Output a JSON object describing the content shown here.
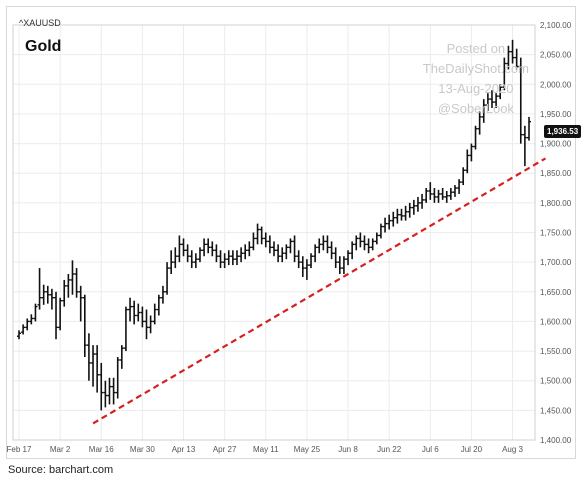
{
  "chart_data": {
    "type": "ohlc",
    "ticker": "^XAUUSD",
    "title": "Gold",
    "watermark": [
      "Posted on",
      "TheDailyShot.com",
      "13-Aug-2020",
      "@SoberLook"
    ],
    "source": "Source: barchart.com",
    "last_price_label": "1,936.53",
    "ylim": [
      1400,
      2100
    ],
    "yticks": [
      "1,400.00",
      "1,450.00",
      "1,500.00",
      "1,550.00",
      "1,600.00",
      "1,650.00",
      "1,700.00",
      "1,750.00",
      "1,800.00",
      "1,850.00",
      "1,900.00",
      "1,950.00",
      "2,000.00",
      "2,050.00",
      "2,100.00"
    ],
    "ytick_values": [
      1400,
      1450,
      1500,
      1550,
      1600,
      1650,
      1700,
      1750,
      1800,
      1850,
      1900,
      1950,
      2000,
      2050,
      2100
    ],
    "xticks": [
      "Feb 17",
      "Mar 2",
      "Mar 16",
      "Mar 30",
      "Apr 13",
      "Apr 27",
      "May 11",
      "May 25",
      "Jun 8",
      "Jun 22",
      "Jul 6",
      "Jul 20",
      "Aug 3"
    ],
    "xtick_index": [
      0,
      10,
      20,
      30,
      40,
      50,
      60,
      70,
      80,
      90,
      100,
      110,
      120
    ],
    "bars": [
      [
        1575,
        1585,
        1570,
        1580
      ],
      [
        1582,
        1595,
        1578,
        1590
      ],
      [
        1590,
        1605,
        1585,
        1600
      ],
      [
        1600,
        1612,
        1595,
        1605
      ],
      [
        1605,
        1630,
        1600,
        1625
      ],
      [
        1628,
        1690,
        1620,
        1640
      ],
      [
        1640,
        1662,
        1628,
        1650
      ],
      [
        1650,
        1660,
        1630,
        1645
      ],
      [
        1645,
        1655,
        1620,
        1640
      ],
      [
        1640,
        1650,
        1570,
        1590
      ],
      [
        1590,
        1640,
        1585,
        1635
      ],
      [
        1635,
        1670,
        1625,
        1660
      ],
      [
        1660,
        1680,
        1640,
        1670
      ],
      [
        1670,
        1703,
        1645,
        1680
      ],
      [
        1680,
        1690,
        1640,
        1650
      ],
      [
        1650,
        1660,
        1600,
        1640
      ],
      [
        1640,
        1645,
        1540,
        1560
      ],
      [
        1560,
        1580,
        1500,
        1530
      ],
      [
        1530,
        1560,
        1490,
        1545
      ],
      [
        1545,
        1560,
        1480,
        1510
      ],
      [
        1510,
        1530,
        1450,
        1480
      ],
      [
        1480,
        1500,
        1455,
        1475
      ],
      [
        1475,
        1505,
        1460,
        1490
      ],
      [
        1490,
        1505,
        1460,
        1480
      ],
      [
        1480,
        1540,
        1470,
        1535
      ],
      [
        1535,
        1560,
        1520,
        1555
      ],
      [
        1555,
        1625,
        1550,
        1620
      ],
      [
        1620,
        1640,
        1600,
        1625
      ],
      [
        1625,
        1635,
        1595,
        1610
      ],
      [
        1610,
        1630,
        1600,
        1615
      ],
      [
        1615,
        1625,
        1590,
        1600
      ],
      [
        1600,
        1620,
        1570,
        1590
      ],
      [
        1590,
        1610,
        1580,
        1600
      ],
      [
        1600,
        1630,
        1595,
        1620
      ],
      [
        1620,
        1645,
        1610,
        1640
      ],
      [
        1640,
        1660,
        1630,
        1650
      ],
      [
        1650,
        1700,
        1645,
        1690
      ],
      [
        1690,
        1720,
        1680,
        1700
      ],
      [
        1700,
        1725,
        1690,
        1710
      ],
      [
        1710,
        1745,
        1700,
        1730
      ],
      [
        1730,
        1740,
        1710,
        1720
      ],
      [
        1720,
        1730,
        1700,
        1710
      ],
      [
        1710,
        1720,
        1690,
        1700
      ],
      [
        1700,
        1715,
        1690,
        1705
      ],
      [
        1705,
        1725,
        1700,
        1720
      ],
      [
        1720,
        1740,
        1710,
        1730
      ],
      [
        1730,
        1740,
        1715,
        1725
      ],
      [
        1725,
        1735,
        1710,
        1720
      ],
      [
        1720,
        1730,
        1700,
        1710
      ],
      [
        1710,
        1720,
        1690,
        1700
      ],
      [
        1700,
        1715,
        1690,
        1705
      ],
      [
        1705,
        1720,
        1695,
        1710
      ],
      [
        1710,
        1720,
        1695,
        1705
      ],
      [
        1705,
        1720,
        1695,
        1710
      ],
      [
        1710,
        1725,
        1700,
        1715
      ],
      [
        1715,
        1730,
        1705,
        1720
      ],
      [
        1720,
        1735,
        1710,
        1725
      ],
      [
        1725,
        1750,
        1720,
        1740
      ],
      [
        1740,
        1765,
        1730,
        1755
      ],
      [
        1755,
        1760,
        1730,
        1740
      ],
      [
        1740,
        1750,
        1725,
        1735
      ],
      [
        1735,
        1745,
        1715,
        1725
      ],
      [
        1725,
        1735,
        1710,
        1720
      ],
      [
        1720,
        1730,
        1700,
        1710
      ],
      [
        1710,
        1725,
        1700,
        1715
      ],
      [
        1715,
        1730,
        1705,
        1725
      ],
      [
        1725,
        1740,
        1715,
        1735
      ],
      [
        1735,
        1745,
        1700,
        1710
      ],
      [
        1710,
        1720,
        1690,
        1700
      ],
      [
        1700,
        1710,
        1675,
        1690
      ],
      [
        1690,
        1705,
        1670,
        1695
      ],
      [
        1695,
        1715,
        1690,
        1710
      ],
      [
        1710,
        1730,
        1700,
        1725
      ],
      [
        1725,
        1740,
        1715,
        1730
      ],
      [
        1730,
        1745,
        1720,
        1735
      ],
      [
        1735,
        1745,
        1715,
        1725
      ],
      [
        1725,
        1735,
        1705,
        1715
      ],
      [
        1715,
        1725,
        1690,
        1700
      ],
      [
        1700,
        1710,
        1680,
        1690
      ],
      [
        1690,
        1710,
        1680,
        1705
      ],
      [
        1705,
        1720,
        1695,
        1715
      ],
      [
        1715,
        1735,
        1705,
        1730
      ],
      [
        1730,
        1745,
        1720,
        1740
      ],
      [
        1740,
        1750,
        1725,
        1735
      ],
      [
        1735,
        1745,
        1720,
        1730
      ],
      [
        1730,
        1740,
        1715,
        1725
      ],
      [
        1725,
        1740,
        1720,
        1735
      ],
      [
        1735,
        1750,
        1730,
        1745
      ],
      [
        1745,
        1765,
        1740,
        1760
      ],
      [
        1760,
        1775,
        1750,
        1765
      ],
      [
        1765,
        1780,
        1755,
        1770
      ],
      [
        1770,
        1785,
        1760,
        1775
      ],
      [
        1775,
        1790,
        1765,
        1780
      ],
      [
        1780,
        1790,
        1770,
        1778
      ],
      [
        1778,
        1795,
        1770,
        1785
      ],
      [
        1785,
        1800,
        1775,
        1792
      ],
      [
        1792,
        1805,
        1780,
        1795
      ],
      [
        1795,
        1810,
        1785,
        1800
      ],
      [
        1800,
        1815,
        1790,
        1805
      ],
      [
        1805,
        1825,
        1800,
        1820
      ],
      [
        1820,
        1835,
        1805,
        1815
      ],
      [
        1815,
        1825,
        1800,
        1810
      ],
      [
        1810,
        1822,
        1800,
        1815
      ],
      [
        1815,
        1825,
        1805,
        1810
      ],
      [
        1810,
        1820,
        1800,
        1812
      ],
      [
        1812,
        1825,
        1805,
        1818
      ],
      [
        1818,
        1830,
        1810,
        1825
      ],
      [
        1825,
        1840,
        1815,
        1835
      ],
      [
        1835,
        1860,
        1830,
        1855
      ],
      [
        1855,
        1890,
        1850,
        1880
      ],
      [
        1880,
        1900,
        1870,
        1895
      ],
      [
        1895,
        1930,
        1890,
        1925
      ],
      [
        1925,
        1955,
        1915,
        1945
      ],
      [
        1945,
        1975,
        1935,
        1965
      ],
      [
        1965,
        1985,
        1955,
        1975
      ],
      [
        1975,
        1990,
        1960,
        1970
      ],
      [
        1970,
        1985,
        1960,
        1980
      ],
      [
        1980,
        2000,
        1975,
        1995
      ],
      [
        1995,
        2045,
        1990,
        2035
      ],
      [
        2035,
        2065,
        2025,
        2055
      ],
      [
        2055,
        2075,
        2035,
        2045
      ],
      [
        2045,
        2060,
        2025,
        2030
      ],
      [
        2030,
        2045,
        1900,
        1915
      ],
      [
        1915,
        1930,
        1862,
        1910
      ],
      [
        1910,
        1945,
        1905,
        1937
      ]
    ],
    "trendline": {
      "start": {
        "index": 18,
        "value": 1428
      },
      "end": {
        "index": 128,
        "value": 1875
      },
      "color": "#d62020"
    },
    "bar_color": "#111111",
    "grid": true,
    "y_axis_side": "right"
  }
}
